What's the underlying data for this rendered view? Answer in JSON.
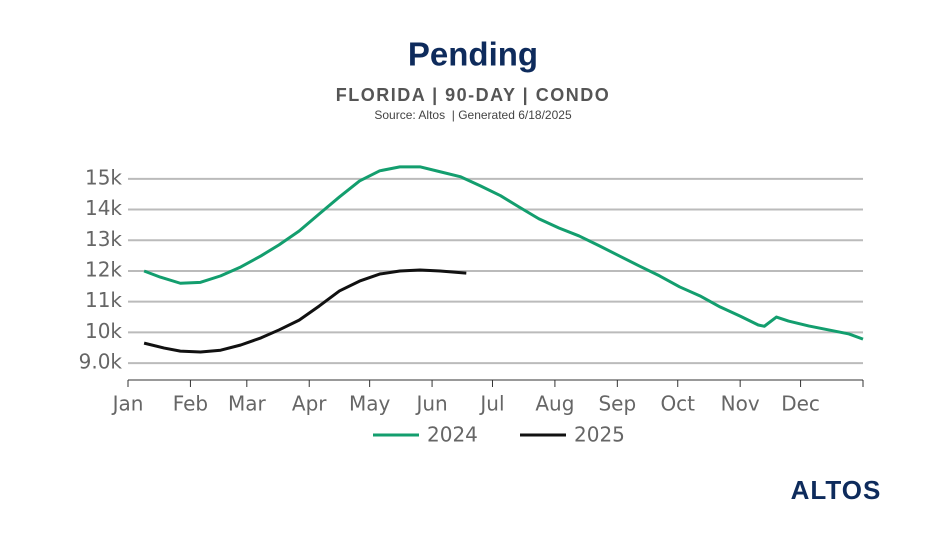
{
  "chart_data": {
    "type": "line",
    "title": "Pending",
    "subtitle": "FLORIDA | 90-DAY | CONDO",
    "source": "Source: Altos  | Generated 6/18/2025",
    "logo": "ALTOS",
    "xlim": [
      0,
      365
    ],
    "xticks": [
      {
        "value": 0,
        "label": "Jan"
      },
      {
        "value": 31,
        "label": "Feb"
      },
      {
        "value": 59,
        "label": "Mar"
      },
      {
        "value": 90,
        "label": "Apr"
      },
      {
        "value": 120,
        "label": "May"
      },
      {
        "value": 151,
        "label": "Jun"
      },
      {
        "value": 181,
        "label": "Jul"
      },
      {
        "value": 212,
        "label": "Aug"
      },
      {
        "value": 243,
        "label": "Sep"
      },
      {
        "value": 273,
        "label": "Oct"
      },
      {
        "value": 304,
        "label": "Nov"
      },
      {
        "value": 334,
        "label": "Dec"
      }
    ],
    "ylim": [
      8450,
      15450
    ],
    "yticks": [
      {
        "value": 9000,
        "label": "9.0k"
      },
      {
        "value": 10000,
        "label": "10k"
      },
      {
        "value": 11000,
        "label": "11k"
      },
      {
        "value": 12000,
        "label": "12k"
      },
      {
        "value": 13000,
        "label": "13k"
      },
      {
        "value": 14000,
        "label": "14k"
      },
      {
        "value": 15000,
        "label": "15k"
      }
    ],
    "grid": true,
    "series": [
      {
        "name": "2024",
        "color": "#139e6e",
        "x": [
          8,
          16,
          26,
          36,
          46,
          56,
          66,
          75,
          85,
          95,
          105,
          115,
          125,
          135,
          145,
          155,
          165,
          175,
          185,
          194,
          204,
          214,
          224,
          234,
          244,
          254,
          264,
          274,
          284,
          294,
          304,
          313,
          316,
          322,
          328,
          338,
          348,
          358,
          365
        ],
        "values": [
          12000,
          11800,
          11600,
          11630,
          11840,
          12130,
          12490,
          12850,
          13300,
          13860,
          14410,
          14930,
          15260,
          15390,
          15390,
          15230,
          15070,
          14770,
          14450,
          14090,
          13700,
          13400,
          13140,
          12820,
          12490,
          12160,
          11840,
          11480,
          11190,
          10830,
          10530,
          10240,
          10200,
          10500,
          10370,
          10210,
          10080,
          9950,
          9780
        ]
      },
      {
        "name": "2025",
        "color": "#111111",
        "x": [
          8,
          18,
          26,
          36,
          46,
          56,
          66,
          75,
          85,
          95,
          105,
          115,
          125,
          135,
          145,
          155,
          168
        ],
        "values": [
          9650,
          9490,
          9390,
          9360,
          9420,
          9590,
          9820,
          10080,
          10400,
          10860,
          11350,
          11670,
          11900,
          12000,
          12030,
          12000,
          11930
        ]
      }
    ]
  }
}
